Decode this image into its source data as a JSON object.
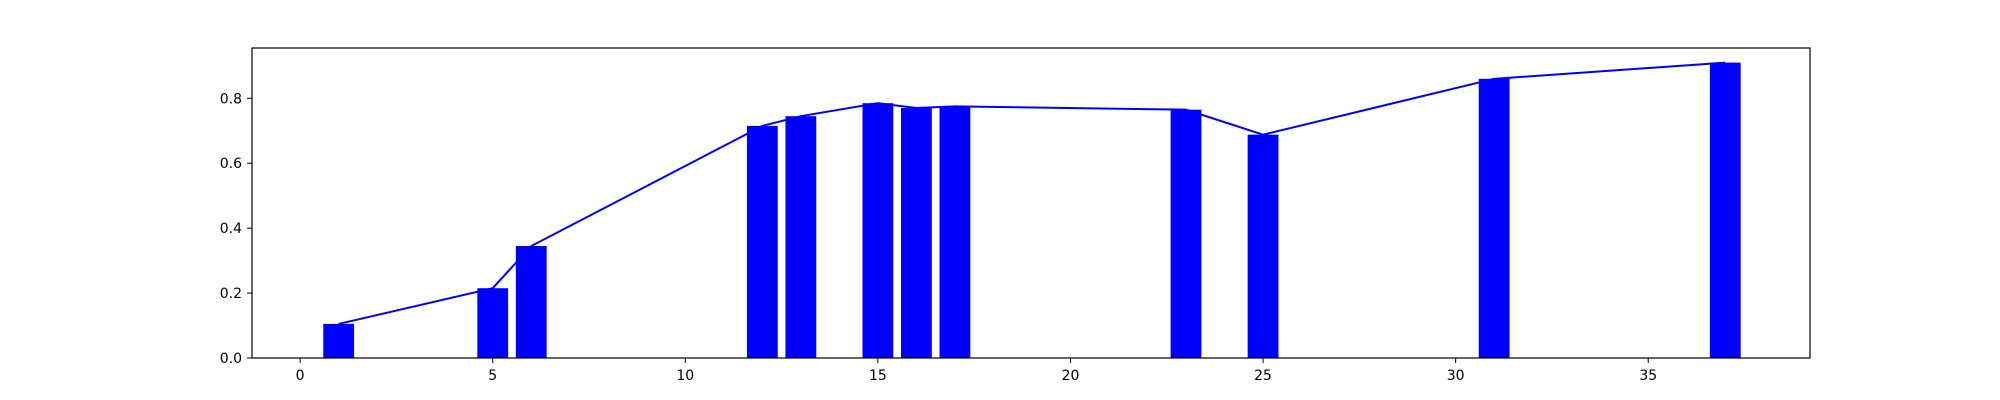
{
  "chart_data": {
    "type": "bar",
    "title": "",
    "xlabel": "",
    "ylabel": "",
    "xlim": [
      -1.25,
      39.2
    ],
    "ylim": [
      0,
      0.955
    ],
    "xticks": [
      0,
      5,
      10,
      15,
      20,
      25,
      30,
      35
    ],
    "yticks": [
      0.0,
      0.2,
      0.4,
      0.6,
      0.8
    ],
    "grid": false,
    "legend": "none",
    "bar_width": 0.8,
    "bar_color": "#0000ff",
    "line_color": "#0000ff",
    "points": [
      {
        "x": 1,
        "y": 0.105
      },
      {
        "x": 5,
        "y": 0.215
      },
      {
        "x": 6,
        "y": 0.345
      },
      {
        "x": 12,
        "y": 0.715
      },
      {
        "x": 13,
        "y": 0.745
      },
      {
        "x": 15,
        "y": 0.785
      },
      {
        "x": 16,
        "y": 0.77
      },
      {
        "x": 17,
        "y": 0.775
      },
      {
        "x": 23,
        "y": 0.765
      },
      {
        "x": 25,
        "y": 0.688
      },
      {
        "x": 31,
        "y": 0.86
      },
      {
        "x": 37,
        "y": 0.91
      }
    ]
  }
}
